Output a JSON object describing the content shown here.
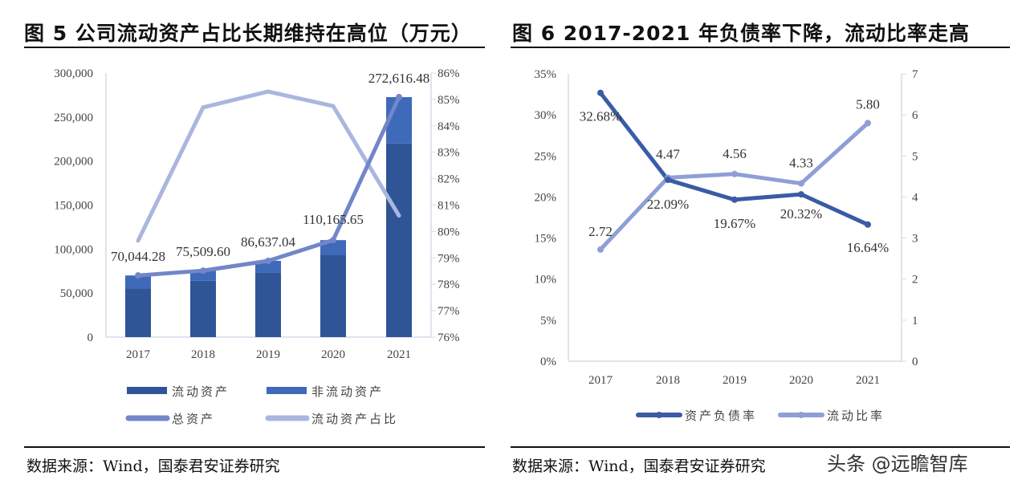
{
  "figure5": {
    "title": "图 5 公司流动资产占比长期维持在高位（万元）",
    "source": "数据来源：Wind，国泰君安证券研究"
  },
  "figure6": {
    "title": "图 6 2017-2021 年负债率下降，流动比率走高",
    "source": "数据来源：Wind，国泰君安证券研究"
  },
  "watermark": "头条 @远瞻智库",
  "chart_data": [
    {
      "type": "bar",
      "stacked": true,
      "categories": [
        "2017",
        "2018",
        "2019",
        "2020",
        "2021"
      ],
      "left_axis": {
        "range": [
          0,
          300000
        ],
        "ticks": [
          "0",
          "50,000",
          "100,000",
          "150,000",
          "200,000",
          "250,000",
          "300,000"
        ]
      },
      "right_axis": {
        "range": [
          76,
          86
        ],
        "ticks": [
          "76%",
          "77%",
          "78%",
          "79%",
          "80%",
          "81%",
          "82%",
          "83%",
          "84%",
          "85%",
          "86%"
        ]
      },
      "grid": false,
      "legend_placement": "bottom",
      "series": [
        {
          "name": "流动资产",
          "kind": "bar",
          "axis": "left",
          "color": "#2f5597",
          "values": [
            54700,
            64000,
            73000,
            93000,
            220000
          ]
        },
        {
          "name": "非流动资产",
          "kind": "bar",
          "axis": "left",
          "color": "#3f69b9",
          "values": [
            15344.28,
            11509.6,
            13637.04,
            17165.65,
            52616.48
          ]
        },
        {
          "name": "总资产",
          "kind": "line",
          "axis": "left",
          "color": "#7286c9",
          "values": [
            70044.28,
            75509.6,
            86637.04,
            110165.65,
            272616.48
          ],
          "labels": [
            "70,044.28",
            "75,509.60",
            "86,637.04",
            "110,165.65",
            "272,616.48"
          ]
        },
        {
          "name": "流动资产占比",
          "kind": "line",
          "axis": "right",
          "unit": "%",
          "color": "#aab6de",
          "values": [
            79.65,
            84.7,
            85.3,
            84.75,
            80.6
          ]
        }
      ]
    },
    {
      "type": "line",
      "categories": [
        "2017",
        "2018",
        "2019",
        "2020",
        "2021"
      ],
      "left_axis": {
        "range": [
          0,
          35
        ],
        "ticks": [
          "0%",
          "5%",
          "10%",
          "15%",
          "20%",
          "25%",
          "30%",
          "35%"
        ]
      },
      "right_axis": {
        "range": [
          0,
          7
        ],
        "ticks": [
          "0",
          "1",
          "2",
          "3",
          "4",
          "5",
          "6",
          "7"
        ]
      },
      "grid": false,
      "legend_placement": "bottom",
      "series": [
        {
          "name": "资产负债率",
          "axis": "left",
          "unit": "%",
          "color": "#3a5ba5",
          "values": [
            32.68,
            22.09,
            19.67,
            20.32,
            16.64
          ],
          "labels": [
            "32.68%",
            "22.09%",
            "19.67%",
            "20.32%",
            "16.64%"
          ]
        },
        {
          "name": "流动比率",
          "axis": "right",
          "color": "#8e9fd6",
          "values": [
            2.72,
            4.47,
            4.56,
            4.33,
            5.8
          ],
          "labels": [
            "2.72",
            "4.47",
            "4.56",
            "4.33",
            "5.80"
          ]
        }
      ]
    }
  ]
}
